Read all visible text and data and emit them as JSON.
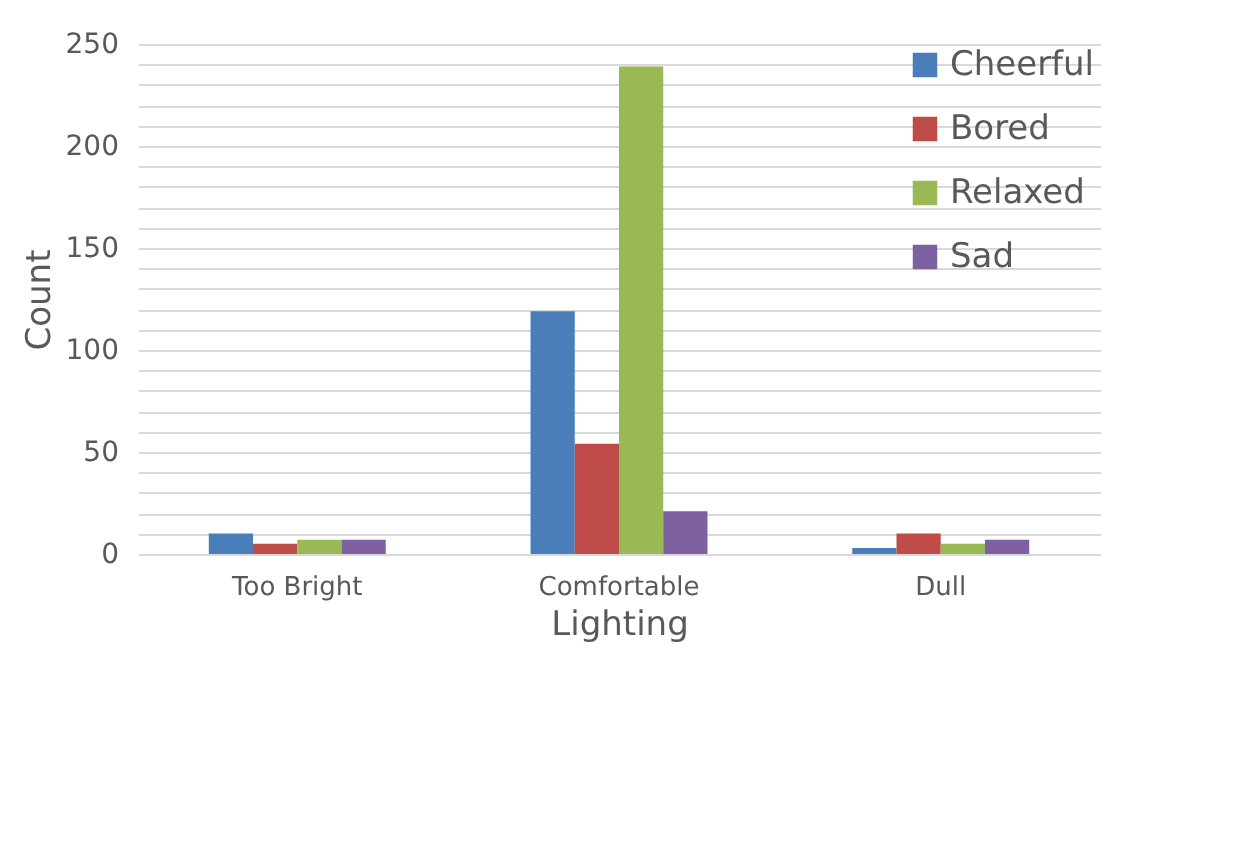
{
  "chart_data": {
    "type": "bar",
    "xlabel": "Lighting",
    "ylabel": "Count",
    "categories": [
      "Too Bright",
      "Comfortable",
      "Dull"
    ],
    "series": [
      {
        "name": "Cheerful",
        "color": "#4a7ebb",
        "values": [
          10,
          119,
          3
        ]
      },
      {
        "name": "Bored",
        "color": "#be4b48",
        "values": [
          5,
          54,
          10
        ]
      },
      {
        "name": "Relaxed",
        "color": "#98b954",
        "values": [
          7,
          239,
          5
        ]
      },
      {
        "name": "Sad",
        "color": "#7d60a0",
        "values": [
          7,
          21,
          7
        ]
      }
    ],
    "ylim": [
      0,
      250
    ],
    "yticks": [
      0,
      {
        "value": 10,
        "label": null
      },
      {
        "value": 20,
        "label": null
      },
      {
        "value": 30,
        "label": null
      },
      {
        "value": 40,
        "label": null
      },
      50,
      {
        "value": 60,
        "label": null
      },
      {
        "value": 70,
        "label": null
      },
      {
        "value": 80,
        "label": null
      },
      {
        "value": 90,
        "label": null
      },
      100,
      {
        "value": 110,
        "label": null
      },
      {
        "value": 120,
        "label": null
      },
      {
        "value": 130,
        "label": null
      },
      {
        "value": 140,
        "label": null
      },
      150,
      {
        "value": 160,
        "label": null
      },
      {
        "value": 170,
        "label": null
      },
      {
        "value": 180,
        "label": null
      },
      {
        "value": 190,
        "label": null
      },
      200,
      {
        "value": 210,
        "label": null
      },
      {
        "value": 220,
        "label": null
      },
      {
        "value": 230,
        "label": null
      },
      {
        "value": 240,
        "label": null
      },
      250
    ],
    "grid": "y",
    "legend": "top right"
  }
}
